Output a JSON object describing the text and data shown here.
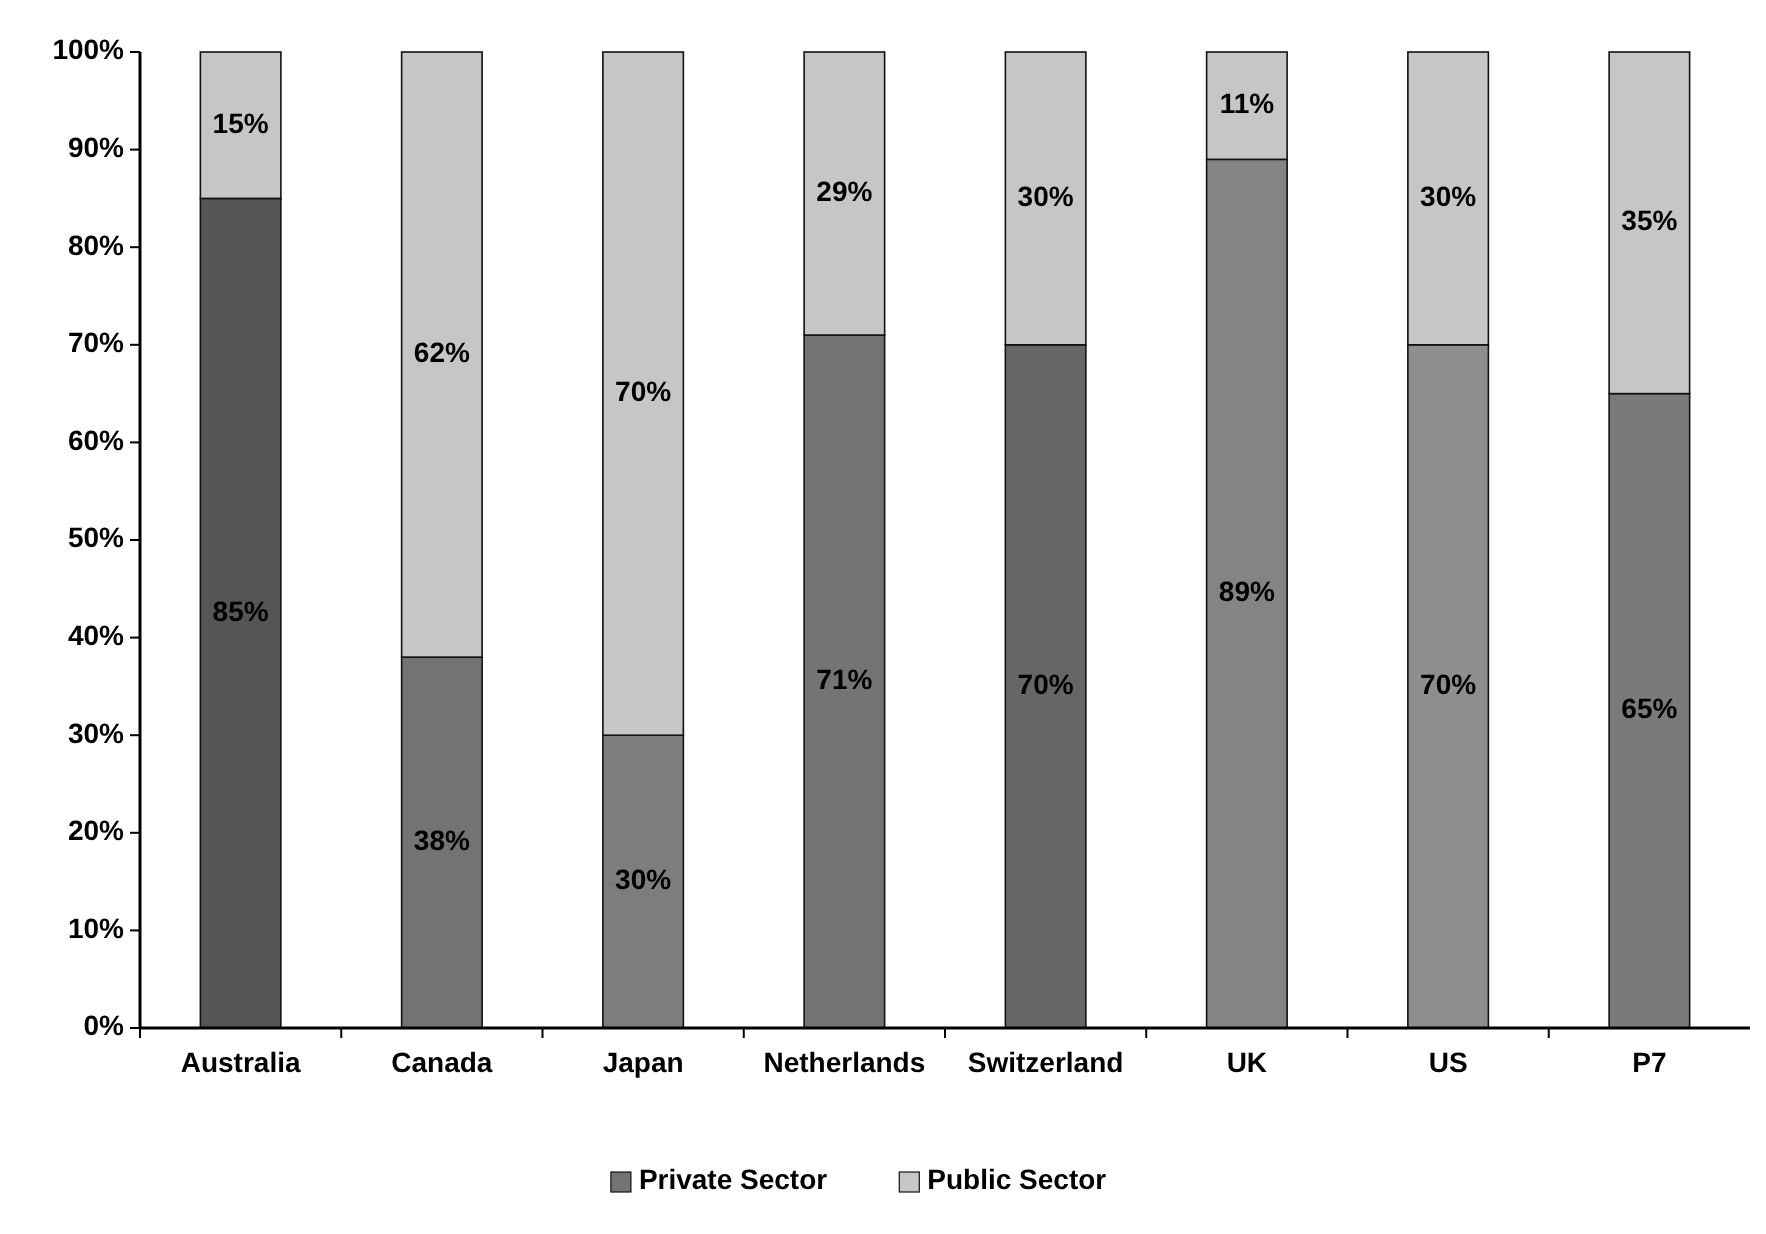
{
  "chart_data": {
    "type": "bar",
    "stacked": true,
    "categories": [
      "Australia",
      "Canada",
      "Japan",
      "Netherlands",
      "Switzerland",
      "UK",
      "US",
      "P7"
    ],
    "series": [
      {
        "name": "Private Sector",
        "color": "#737373",
        "colors": [
          "#555555",
          "#737373",
          "#7d7d7d",
          "#747474",
          "#666666",
          "#848484",
          "#8e8e8e",
          "#7a7a7a"
        ],
        "values": [
          85,
          38,
          30,
          71,
          70,
          89,
          70,
          65
        ],
        "value_labels": [
          "85%",
          "38%",
          "30%",
          "71%",
          "70%",
          "89%",
          "70%",
          "65%"
        ]
      },
      {
        "name": "Public Sector",
        "color": "#c6c6c6",
        "values": [
          15,
          62,
          70,
          29,
          30,
          11,
          30,
          35
        ],
        "value_labels": [
          "15%",
          "62%",
          "70%",
          "29%",
          "30%",
          "11%",
          "30%",
          "35%"
        ]
      }
    ],
    "ylim": [
      0,
      100
    ],
    "yticks": [
      {
        "value": 0,
        "label": "0%"
      },
      {
        "value": 10,
        "label": "10%"
      },
      {
        "value": 20,
        "label": "20%"
      },
      {
        "value": 30,
        "label": "30%"
      },
      {
        "value": 40,
        "label": "40%"
      },
      {
        "value": 50,
        "label": "50%"
      },
      {
        "value": 60,
        "label": "60%"
      },
      {
        "value": 70,
        "label": "70%"
      },
      {
        "value": 80,
        "label": "80%"
      },
      {
        "value": 90,
        "label": "90%"
      },
      {
        "value": 100,
        "label": "100%"
      }
    ],
    "legend": "bottom",
    "grid": false
  }
}
